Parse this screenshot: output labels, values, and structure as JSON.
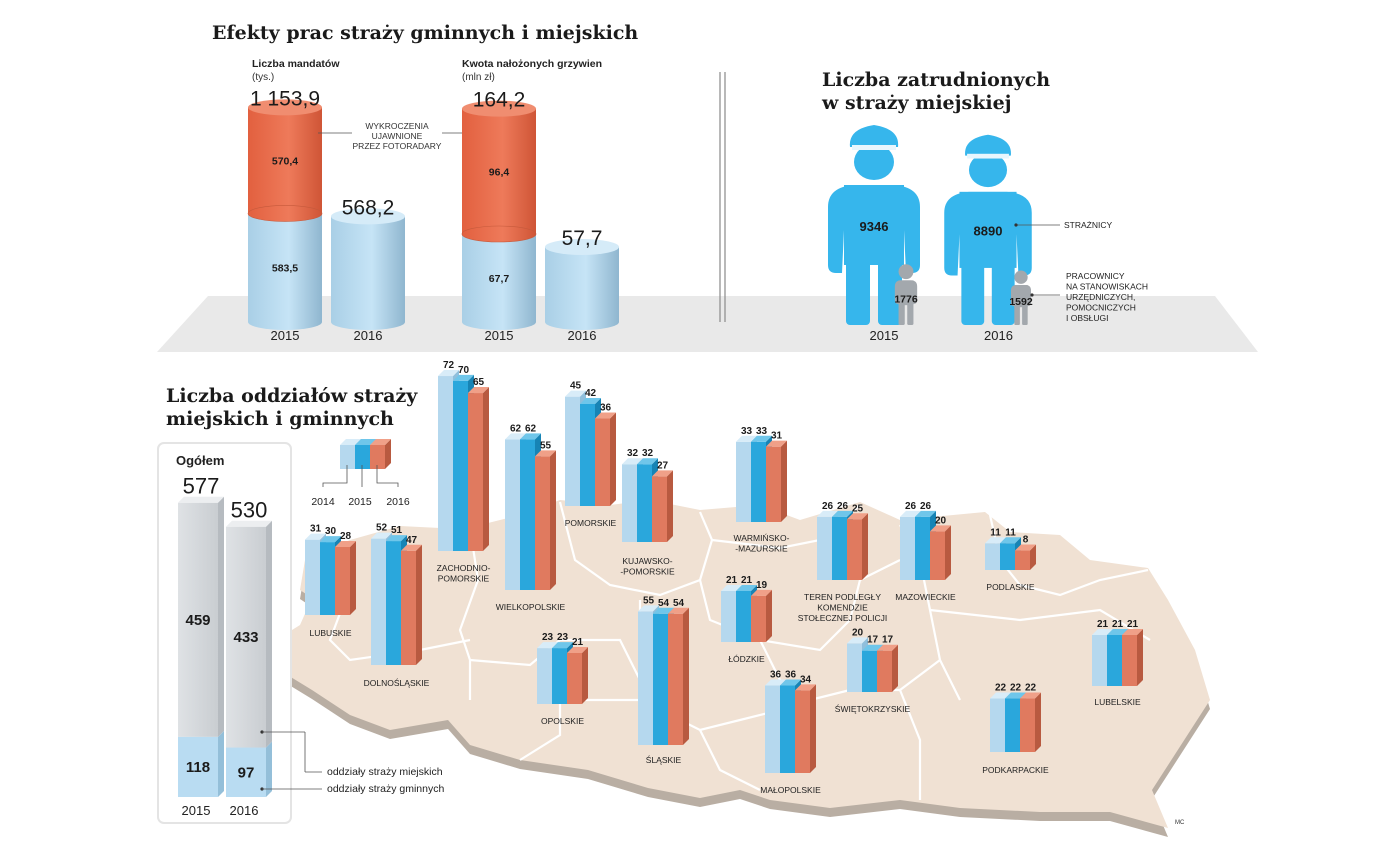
{
  "colors": {
    "orange": "#e8694a",
    "blue_light": "#b5d8ee",
    "blue_mid": "#2aa7dc",
    "guard_blue": "#36b6ec",
    "grey": "#a3a8ad",
    "column_grey": "#d4d8dc",
    "column_blue": "#b9dcf2",
    "map": "#f0e1d3",
    "map_border": "#ffffff",
    "floor": "#e9e9e9"
  },
  "chart_data": [
    {
      "type": "bar",
      "id": "mandaty",
      "title": "Efekty prac straży gminnych i miejskich",
      "subtitle": "Liczba mandatów",
      "unit": "(tys.)",
      "categories": [
        "2015",
        "2016"
      ],
      "totals": [
        "1 153,9",
        "568,2"
      ],
      "series": [
        {
          "values": [
            583.5,
            568.2
          ],
          "labels": [
            "583,5",
            ""
          ]
        },
        {
          "values": [
            570.4,
            0
          ],
          "labels": [
            "570,4",
            ""
          ]
        }
      ],
      "annotation": [
        "WYKROCZENIA",
        "UJAWNIONE",
        "PRZEZ FOTORADARY"
      ]
    },
    {
      "type": "bar",
      "id": "grzywny",
      "subtitle": "Kwota nałożonych grzywien",
      "unit": "(mln zł)",
      "categories": [
        "2015",
        "2016"
      ],
      "totals": [
        "164,2",
        "57,7"
      ],
      "series": [
        {
          "values": [
            67.7,
            57.7
          ],
          "labels": [
            "67,7",
            ""
          ]
        },
        {
          "values": [
            96.4,
            0
          ],
          "labels": [
            "96,4",
            ""
          ]
        }
      ]
    },
    {
      "type": "bar",
      "id": "zatrudnieni",
      "title": [
        "Liczba zatrudnionych",
        "w straży miejskiej"
      ],
      "categories": [
        "2015",
        "2016"
      ],
      "series": [
        {
          "name": "STRAŻNICY",
          "values": [
            9346,
            8890
          ]
        },
        {
          "name": [
            "PRACOWNICY",
            "NA STANOWISKACH",
            "URZĘDNICZYCH,",
            "POMOCNICZYCH",
            "I OBSŁUGI"
          ],
          "values": [
            1776,
            1592
          ]
        }
      ]
    },
    {
      "type": "bar",
      "id": "oddzialy",
      "title": [
        "Liczba oddziałów straży",
        "miejskich i gminnych"
      ],
      "legend_years": [
        "2014",
        "2015",
        "2016"
      ],
      "total_box": {
        "label": "Ogółem",
        "categories": [
          "2015",
          "2016"
        ],
        "totals": [
          577,
          530
        ],
        "miejskie": [
          459,
          433
        ],
        "gminne": [
          118,
          97
        ],
        "legend": [
          "oddziały straży miejskich",
          "oddziały straży gminnych"
        ]
      },
      "regions": [
        {
          "name": [
            "ZACHODNIO-",
            "POMORSKIE"
          ],
          "values": [
            72,
            70,
            65
          ]
        },
        {
          "name": [
            "POMORSKIE"
          ],
          "values": [
            45,
            42,
            36
          ]
        },
        {
          "name": [
            "WIELKOPOLSKIE"
          ],
          "values": [
            62,
            62,
            55
          ]
        },
        {
          "name": [
            "KUJAWSKO-",
            "-POMORSKIE"
          ],
          "values": [
            32,
            32,
            27
          ]
        },
        {
          "name": [
            "WARMIŃSKO-",
            "-MAZURSKIE"
          ],
          "values": [
            33,
            33,
            31
          ]
        },
        {
          "name": [
            "TEREN PODLEGŁY",
            "KOMENDZIE",
            "STOŁECZNEJ POLICJI"
          ],
          "values": [
            26,
            26,
            25
          ]
        },
        {
          "name": [
            "MAZOWIECKIE"
          ],
          "values": [
            26,
            26,
            20
          ]
        },
        {
          "name": [
            "PODLASKIE"
          ],
          "values": [
            11,
            11,
            8
          ]
        },
        {
          "name": [
            "LUBUSKIE"
          ],
          "values": [
            31,
            30,
            28
          ]
        },
        {
          "name": [
            "DOLNOŚLĄSKIE"
          ],
          "values": [
            52,
            51,
            47
          ]
        },
        {
          "name": [
            "ŁÓDZKIE"
          ],
          "values": [
            21,
            21,
            19
          ]
        },
        {
          "name": [
            "OPOLSKIE"
          ],
          "values": [
            23,
            23,
            21
          ]
        },
        {
          "name": [
            "ŚLĄSKIE"
          ],
          "values": [
            55,
            54,
            54
          ]
        },
        {
          "name": [
            "ŚWIĘTOKRZYSKIE"
          ],
          "values": [
            20,
            17,
            17
          ]
        },
        {
          "name": [
            "LUBELSKIE"
          ],
          "values": [
            21,
            21,
            21
          ]
        },
        {
          "name": [
            "MAŁOPOLSKIE"
          ],
          "values": [
            36,
            36,
            34
          ]
        },
        {
          "name": [
            "PODKARPACKIE"
          ],
          "values": [
            22,
            22,
            22
          ]
        }
      ]
    }
  ],
  "signature": "MC"
}
